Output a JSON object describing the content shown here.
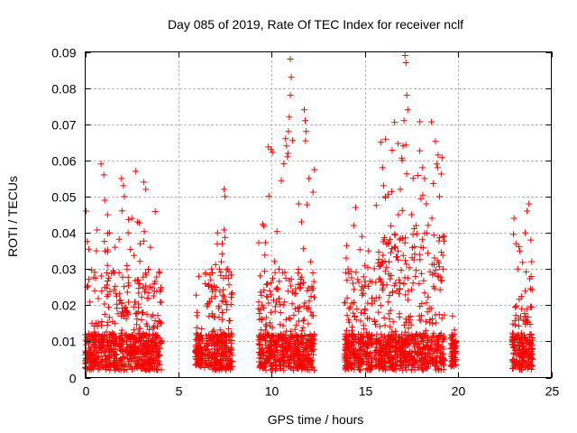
{
  "chart_data": {
    "type": "scatter",
    "title": "Day 085 of 2019, Rate Of TEC Index for receiver nclf",
    "xlabel": "GPS time / hours",
    "ylabel": "ROTI / TECUs",
    "xlim": [
      0,
      25
    ],
    "ylim": [
      0,
      0.09
    ],
    "xticks": [
      0,
      5,
      10,
      15,
      20,
      25
    ],
    "yticks": [
      0,
      0.01,
      0.02,
      0.03,
      0.04,
      0.05,
      0.06,
      0.07,
      0.08,
      0.09
    ],
    "ytick_labels": [
      "0",
      "0.01",
      "0.02",
      "0.03",
      "0.04",
      "0.05",
      "0.06",
      "0.07",
      "0.08",
      "0.09"
    ],
    "grid": true,
    "marker": "+",
    "color": "#ff0000",
    "clusters": [
      {
        "x_range": [
          0.0,
          4.1
        ],
        "y_range": [
          0.002,
          0.059
        ],
        "dense_max": 0.03
      },
      {
        "x_range": [
          5.9,
          6.3
        ],
        "y_range": [
          0.003,
          0.028
        ],
        "dense_max": 0.008
      },
      {
        "x_range": [
          6.4,
          7.9
        ],
        "y_range": [
          0.002,
          0.052
        ],
        "dense_max": 0.03
      },
      {
        "x_range": [
          9.3,
          12.3
        ],
        "y_range": [
          0.002,
          0.088
        ],
        "dense_max": 0.03
      },
      {
        "x_range": [
          13.9,
          15.4
        ],
        "y_range": [
          0.002,
          0.047
        ],
        "dense_max": 0.03
      },
      {
        "x_range": [
          15.5,
          19.3
        ],
        "y_range": [
          0.002,
          0.089
        ],
        "dense_max": 0.04
      },
      {
        "x_range": [
          19.6,
          19.9
        ],
        "y_range": [
          0.003,
          0.017
        ],
        "dense_max": 0.01
      },
      {
        "x_range": [
          22.9,
          24.0
        ],
        "y_range": [
          0.002,
          0.049
        ],
        "dense_max": 0.02
      }
    ],
    "series": [
      {
        "name": "ROTI",
        "points": [
          [
            0.05,
            0.046
          ],
          [
            0.6,
            0.035
          ],
          [
            0.85,
            0.059
          ],
          [
            1.0,
            0.056
          ],
          [
            1.05,
            0.049
          ],
          [
            1.2,
            0.045
          ],
          [
            1.3,
            0.04
          ],
          [
            1.6,
            0.036
          ],
          [
            1.95,
            0.055
          ],
          [
            2.05,
            0.053
          ],
          [
            2.1,
            0.05
          ],
          [
            2.3,
            0.04
          ],
          [
            2.5,
            0.044
          ],
          [
            2.7,
            0.057
          ],
          [
            2.8,
            0.043
          ],
          [
            3.15,
            0.054
          ],
          [
            3.25,
            0.052
          ],
          [
            3.5,
            0.036
          ],
          [
            6.1,
            0.028
          ],
          [
            6.0,
            0.018
          ],
          [
            6.1,
            0.011
          ],
          [
            6.0,
            0.008
          ],
          [
            7.1,
            0.04
          ],
          [
            7.2,
            0.03
          ],
          [
            7.3,
            0.032
          ],
          [
            7.35,
            0.037
          ],
          [
            7.45,
            0.052
          ],
          [
            7.5,
            0.05
          ],
          [
            7.65,
            0.03
          ],
          [
            9.3,
            0.019
          ],
          [
            9.35,
            0.016
          ],
          [
            9.95,
            0.018
          ],
          [
            10.75,
            0.066
          ],
          [
            10.8,
            0.064
          ],
          [
            10.85,
            0.061
          ],
          [
            10.9,
            0.068
          ],
          [
            10.95,
            0.072
          ],
          [
            11.0,
            0.088
          ],
          [
            11.05,
            0.083
          ],
          [
            11.0,
            0.078
          ],
          [
            11.45,
            0.048
          ],
          [
            11.6,
            0.043
          ],
          [
            11.75,
            0.074
          ],
          [
            11.8,
            0.071
          ],
          [
            11.85,
            0.068
          ],
          [
            12.0,
            0.055
          ],
          [
            12.1,
            0.032
          ],
          [
            14.0,
            0.033
          ],
          [
            14.1,
            0.03
          ],
          [
            14.4,
            0.042
          ],
          [
            14.5,
            0.047
          ],
          [
            14.85,
            0.039
          ],
          [
            15.0,
            0.031
          ],
          [
            15.2,
            0.035
          ],
          [
            15.85,
            0.065
          ],
          [
            15.95,
            0.058
          ],
          [
            16.0,
            0.053
          ],
          [
            16.1,
            0.05
          ],
          [
            16.25,
            0.037
          ],
          [
            16.3,
            0.032
          ],
          [
            16.8,
            0.045
          ],
          [
            16.9,
            0.052
          ],
          [
            17.0,
            0.06
          ],
          [
            17.05,
            0.064
          ],
          [
            17.1,
            0.071
          ],
          [
            17.15,
            0.089
          ],
          [
            17.2,
            0.087
          ],
          [
            17.25,
            0.078
          ],
          [
            17.3,
            0.074
          ],
          [
            17.5,
            0.045
          ],
          [
            17.75,
            0.042
          ],
          [
            18.1,
            0.058
          ],
          [
            18.2,
            0.055
          ],
          [
            18.3,
            0.048
          ],
          [
            18.6,
            0.044
          ],
          [
            18.85,
            0.059
          ],
          [
            18.9,
            0.058
          ],
          [
            19.0,
            0.05
          ],
          [
            19.2,
            0.03
          ],
          [
            19.7,
            0.017
          ],
          [
            19.8,
            0.012
          ],
          [
            23.0,
            0.044
          ],
          [
            23.1,
            0.037
          ],
          [
            23.2,
            0.03
          ],
          [
            23.6,
            0.04
          ],
          [
            23.7,
            0.046
          ],
          [
            23.8,
            0.048
          ],
          [
            23.9,
            0.038
          ],
          [
            23.95,
            0.032
          ]
        ]
      }
    ]
  }
}
